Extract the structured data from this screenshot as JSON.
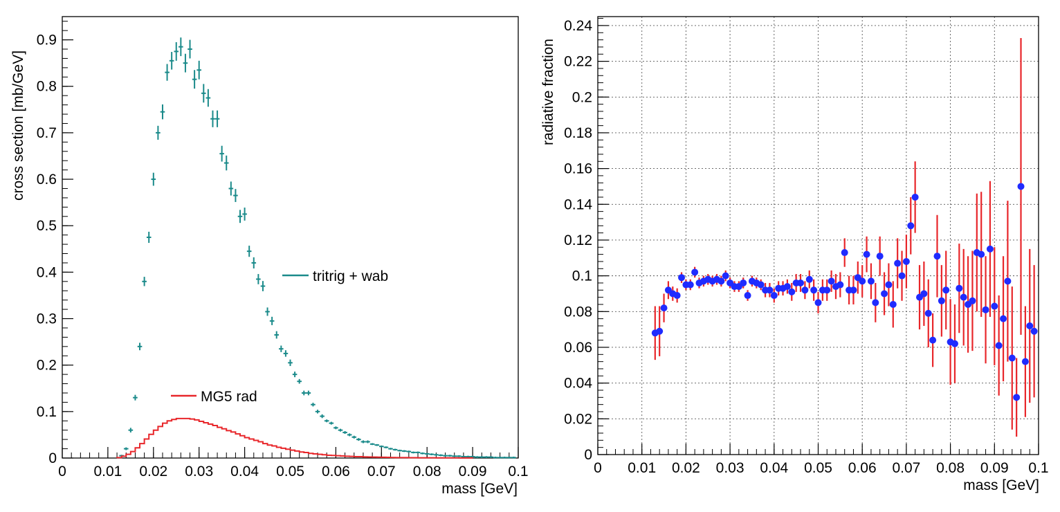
{
  "chart_data": [
    {
      "type": "scatter",
      "xlabel": "mass [GeV]",
      "ylabel": "cross section [mb/GeV]",
      "xlim": [
        0,
        0.1
      ],
      "ylim": [
        0,
        0.95
      ],
      "x_ticks": [
        "0",
        "0.01",
        "0.02",
        "0.03",
        "0.04",
        "0.05",
        "0.06",
        "0.07",
        "0.08",
        "0.09",
        "0.1"
      ],
      "y_ticks": [
        "0",
        "0.1",
        "0.2",
        "0.3",
        "0.4",
        "0.5",
        "0.6",
        "0.7",
        "0.8",
        "0.9"
      ],
      "grid": false,
      "colors": {
        "tritrig": "#1a8a8a",
        "mg5": "#e8262a"
      },
      "series": [
        {
          "name": "tritrig + wab",
          "style": "errorbar-cross",
          "x": [
            0.013,
            0.014,
            0.015,
            0.016,
            0.017,
            0.018,
            0.019,
            0.02,
            0.021,
            0.022,
            0.023,
            0.024,
            0.025,
            0.026,
            0.027,
            0.028,
            0.029,
            0.03,
            0.031,
            0.032,
            0.033,
            0.034,
            0.035,
            0.036,
            0.037,
            0.038,
            0.039,
            0.04,
            0.041,
            0.042,
            0.043,
            0.044,
            0.045,
            0.046,
            0.047,
            0.048,
            0.049,
            0.05,
            0.051,
            0.052,
            0.053,
            0.054,
            0.055,
            0.056,
            0.057,
            0.058,
            0.059,
            0.06,
            0.061,
            0.062,
            0.063,
            0.064,
            0.065,
            0.066,
            0.067,
            0.068,
            0.069,
            0.07,
            0.071,
            0.072,
            0.073,
            0.074,
            0.075,
            0.076,
            0.077,
            0.078,
            0.079,
            0.08,
            0.081,
            0.082,
            0.083,
            0.084,
            0.085,
            0.086,
            0.087,
            0.088,
            0.089,
            0.09,
            0.091,
            0.092,
            0.093,
            0.094,
            0.095,
            0.096,
            0.097,
            0.098,
            0.099
          ],
          "y": [
            0.005,
            0.02,
            0.06,
            0.13,
            0.24,
            0.38,
            0.475,
            0.6,
            0.7,
            0.745,
            0.83,
            0.855,
            0.875,
            0.885,
            0.85,
            0.88,
            0.815,
            0.835,
            0.785,
            0.775,
            0.73,
            0.73,
            0.655,
            0.635,
            0.58,
            0.565,
            0.52,
            0.525,
            0.445,
            0.42,
            0.385,
            0.37,
            0.315,
            0.295,
            0.265,
            0.235,
            0.225,
            0.205,
            0.18,
            0.165,
            0.14,
            0.14,
            0.115,
            0.1,
            0.09,
            0.08,
            0.075,
            0.065,
            0.06,
            0.055,
            0.05,
            0.045,
            0.04,
            0.035,
            0.035,
            0.03,
            0.028,
            0.025,
            0.023,
            0.02,
            0.018,
            0.016,
            0.015,
            0.014,
            0.012,
            0.012,
            0.01,
            0.009,
            0.008,
            0.007,
            0.006,
            0.005,
            0.005,
            0.004,
            0.004,
            0.003,
            0.003,
            0.003,
            0.002,
            0.002,
            0.002,
            0.002,
            0.001,
            0.001,
            0.001,
            0.001,
            0.001
          ],
          "yerr": [
            0.002,
            0.003,
            0.005,
            0.006,
            0.008,
            0.01,
            0.012,
            0.014,
            0.015,
            0.016,
            0.018,
            0.019,
            0.02,
            0.02,
            0.02,
            0.02,
            0.02,
            0.02,
            0.02,
            0.019,
            0.018,
            0.018,
            0.017,
            0.016,
            0.015,
            0.014,
            0.014,
            0.014,
            0.012,
            0.012,
            0.011,
            0.011,
            0.009,
            0.009,
            0.008,
            0.007,
            0.007,
            0.007,
            0.006,
            0.005,
            0.005,
            0.005,
            0.004,
            0.004,
            0.004,
            0.003,
            0.003,
            0.003,
            0.003,
            0.003,
            0.003,
            0.003,
            0.003,
            0.003,
            0.003,
            0.002,
            0.002,
            0.002,
            0.002,
            0.002,
            0.002,
            0.002,
            0.002,
            0.002,
            0.002,
            0.002,
            0.002,
            0.002,
            0.002,
            0.002,
            0.002,
            0.002,
            0.002,
            0.002,
            0.002,
            0.002,
            0.002,
            0.002,
            0.002,
            0.002,
            0.002,
            0.002,
            0.002,
            0.002,
            0.002,
            0.002,
            0.002
          ]
        },
        {
          "name": "MG5 rad",
          "style": "step",
          "x_start": 0.012,
          "bin_width": 0.001,
          "y": [
            0.001,
            0.004,
            0.008,
            0.014,
            0.022,
            0.031,
            0.041,
            0.051,
            0.06,
            0.068,
            0.075,
            0.08,
            0.083,
            0.085,
            0.085,
            0.085,
            0.084,
            0.082,
            0.079,
            0.076,
            0.073,
            0.07,
            0.066,
            0.063,
            0.059,
            0.056,
            0.052,
            0.048,
            0.044,
            0.041,
            0.038,
            0.035,
            0.031,
            0.028,
            0.026,
            0.023,
            0.021,
            0.019,
            0.017,
            0.015,
            0.013,
            0.012,
            0.01,
            0.009,
            0.008,
            0.007,
            0.006,
            0.0055,
            0.005,
            0.0045,
            0.004,
            0.0035,
            0.003,
            0.003,
            0.0025,
            0.0022,
            0.002,
            0.0018,
            0.0016,
            0.0014,
            0.0012,
            0.001,
            0.001,
            0.0009,
            0.0008,
            0.0007,
            0.0006,
            0.0006,
            0.0005,
            0.0005,
            0.0004,
            0.0004,
            0.0003,
            0.0003,
            0.0003,
            0.0002,
            0.0002,
            0.0002
          ]
        }
      ]
    },
    {
      "type": "scatter",
      "xlabel": "mass [GeV]",
      "ylabel": "radiative fraction",
      "xlim": [
        0,
        0.1
      ],
      "ylim": [
        0,
        0.245
      ],
      "x_ticks": [
        "0",
        "0.01",
        "0.02",
        "0.03",
        "0.04",
        "0.05",
        "0.06",
        "0.07",
        "0.08",
        "0.09",
        "0.1"
      ],
      "y_ticks": [
        "0",
        "0.02",
        "0.04",
        "0.06",
        "0.08",
        "0.1",
        "0.12",
        "0.14",
        "0.16",
        "0.18",
        "0.2",
        "0.22",
        "0.24"
      ],
      "grid": true,
      "colors": {
        "marker": "#1f2bff",
        "errorbar": "#e8262a"
      },
      "series": [
        {
          "name": "",
          "style": "marker-errorbar",
          "x": [
            0.013,
            0.014,
            0.015,
            0.016,
            0.017,
            0.018,
            0.019,
            0.02,
            0.021,
            0.022,
            0.023,
            0.024,
            0.025,
            0.026,
            0.027,
            0.028,
            0.029,
            0.03,
            0.031,
            0.032,
            0.033,
            0.034,
            0.035,
            0.036,
            0.037,
            0.038,
            0.039,
            0.04,
            0.041,
            0.042,
            0.043,
            0.044,
            0.045,
            0.046,
            0.047,
            0.048,
            0.049,
            0.05,
            0.051,
            0.052,
            0.053,
            0.054,
            0.055,
            0.056,
            0.057,
            0.058,
            0.059,
            0.06,
            0.061,
            0.062,
            0.063,
            0.064,
            0.065,
            0.066,
            0.067,
            0.068,
            0.069,
            0.07,
            0.071,
            0.072,
            0.073,
            0.074,
            0.075,
            0.076,
            0.077,
            0.078,
            0.079,
            0.08,
            0.081,
            0.082,
            0.083,
            0.084,
            0.085,
            0.086,
            0.087,
            0.088,
            0.089,
            0.09,
            0.091,
            0.092,
            0.093,
            0.094,
            0.095,
            0.096,
            0.097,
            0.098,
            0.099
          ],
          "y": [
            0.068,
            0.069,
            0.082,
            0.092,
            0.09,
            0.089,
            0.099,
            0.095,
            0.095,
            0.102,
            0.096,
            0.097,
            0.098,
            0.097,
            0.098,
            0.097,
            0.1,
            0.096,
            0.094,
            0.094,
            0.096,
            0.089,
            0.097,
            0.096,
            0.095,
            0.092,
            0.092,
            0.089,
            0.093,
            0.093,
            0.094,
            0.091,
            0.096,
            0.096,
            0.092,
            0.098,
            0.092,
            0.085,
            0.092,
            0.092,
            0.097,
            0.094,
            0.095,
            0.113,
            0.092,
            0.092,
            0.099,
            0.097,
            0.112,
            0.097,
            0.085,
            0.111,
            0.09,
            0.095,
            0.084,
            0.107,
            0.1,
            0.108,
            0.128,
            0.144,
            0.088,
            0.09,
            0.079,
            0.064,
            0.111,
            0.086,
            0.092,
            0.063,
            0.062,
            0.093,
            0.088,
            0.084,
            0.086,
            0.113,
            0.112,
            0.081,
            0.115,
            0.083,
            0.061,
            0.076,
            0.097,
            0.054,
            0.032,
            0.15,
            0.052,
            0.072,
            0.069
          ],
          "yerr": [
            0.015,
            0.014,
            0.008,
            0.005,
            0.004,
            0.004,
            0.003,
            0.003,
            0.003,
            0.003,
            0.003,
            0.003,
            0.003,
            0.003,
            0.003,
            0.003,
            0.003,
            0.003,
            0.003,
            0.003,
            0.003,
            0.003,
            0.003,
            0.003,
            0.003,
            0.004,
            0.004,
            0.004,
            0.004,
            0.004,
            0.004,
            0.005,
            0.005,
            0.005,
            0.005,
            0.005,
            0.006,
            0.006,
            0.006,
            0.006,
            0.006,
            0.007,
            0.007,
            0.008,
            0.008,
            0.008,
            0.009,
            0.009,
            0.01,
            0.01,
            0.011,
            0.011,
            0.012,
            0.012,
            0.013,
            0.014,
            0.014,
            0.015,
            0.016,
            0.02,
            0.018,
            0.018,
            0.019,
            0.015,
            0.023,
            0.02,
            0.022,
            0.024,
            0.022,
            0.025,
            0.027,
            0.027,
            0.028,
            0.033,
            0.035,
            0.03,
            0.038,
            0.033,
            0.028,
            0.035,
            0.045,
            0.04,
            0.022,
            0.083,
            0.031,
            0.043,
            0.037
          ]
        }
      ]
    }
  ],
  "legend": [
    {
      "label": "tritrig + wab",
      "color": "#1a8a8a"
    },
    {
      "label": "MG5 rad",
      "color": "#e8262a"
    }
  ]
}
